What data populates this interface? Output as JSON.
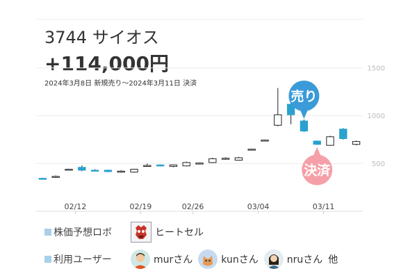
{
  "header": {
    "stock": "3744 サイオス",
    "profit": "+114,000円",
    "period": "2024年3月8日 新規売り〜2024年3月11日 決済"
  },
  "chart_data": {
    "type": "candlestick",
    "y_ticks": [
      500,
      1000,
      1500
    ],
    "ylim": [
      0,
      1950
    ],
    "x_tick_labels": [
      "02/12",
      "02/19",
      "02/26",
      "03/04",
      "03/11"
    ],
    "grid": true,
    "candles": [
      {
        "o": 345,
        "h": 350,
        "l": 335,
        "c": 340
      },
      {
        "o": 355,
        "h": 375,
        "l": 350,
        "c": 365
      },
      {
        "o": 440,
        "h": 445,
        "l": 435,
        "c": 440
      },
      {
        "o": 460,
        "h": 480,
        "l": 420,
        "c": 430
      },
      {
        "o": 430,
        "h": 440,
        "l": 420,
        "c": 425
      },
      {
        "o": 430,
        "h": 435,
        "l": 410,
        "c": 415
      },
      {
        "o": 415,
        "h": 430,
        "l": 405,
        "c": 420
      },
      {
        "o": 410,
        "h": 445,
        "l": 405,
        "c": 440
      },
      {
        "o": 475,
        "h": 500,
        "l": 470,
        "c": 480
      },
      {
        "o": 485,
        "h": 490,
        "l": 470,
        "c": 475
      },
      {
        "o": 470,
        "h": 490,
        "l": 460,
        "c": 485
      },
      {
        "o": 475,
        "h": 520,
        "l": 470,
        "c": 510
      },
      {
        "o": 500,
        "h": 510,
        "l": 490,
        "c": 505
      },
      {
        "o": 510,
        "h": 560,
        "l": 505,
        "c": 550
      },
      {
        "o": 550,
        "h": 565,
        "l": 540,
        "c": 555
      },
      {
        "o": 535,
        "h": 570,
        "l": 530,
        "c": 560
      },
      {
        "o": 650,
        "h": 655,
        "l": 645,
        "c": 650
      },
      {
        "o": 745,
        "h": 750,
        "l": 740,
        "c": 745
      },
      {
        "o": 900,
        "h": 1290,
        "l": 890,
        "c": 1010
      },
      {
        "o": 1120,
        "h": 1150,
        "l": 910,
        "c": 1010
      },
      {
        "o": 945,
        "h": 960,
        "l": 830,
        "c": 840
      },
      {
        "o": 735,
        "h": 740,
        "l": 695,
        "c": 700
      },
      {
        "o": 690,
        "h": 790,
        "l": 685,
        "c": 780
      },
      {
        "o": 860,
        "h": 870,
        "l": 750,
        "c": 760
      },
      {
        "o": 700,
        "h": 740,
        "l": 690,
        "c": 730
      }
    ],
    "markers": [
      {
        "label": "売り",
        "at": 20,
        "position": "above",
        "color": "#3a9bd8"
      },
      {
        "label": "決済",
        "at": 21,
        "position": "below",
        "color": "#f5a0a8"
      }
    ]
  },
  "legend": {
    "robot_label": "株価予想ロボ",
    "robot_name": "ヒートセル",
    "users_label": "利用ユーザー",
    "users": [
      {
        "name": "murさん",
        "icon": "man-avatar-icon"
      },
      {
        "name": "kunさん",
        "icon": "cat-avatar-icon"
      },
      {
        "name": "nruさん",
        "icon": "woman-avatar-icon"
      }
    ],
    "users_suffix": "他"
  }
}
